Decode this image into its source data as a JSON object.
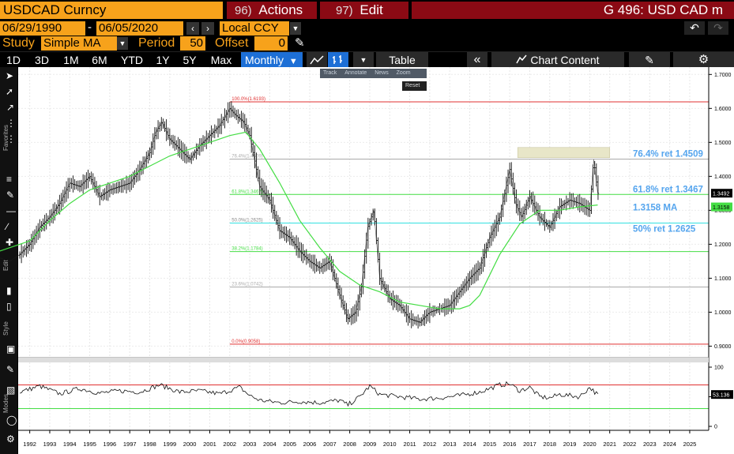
{
  "header": {
    "ticker": "USDCAD Curncy",
    "actions_num": "96)",
    "actions_label": "Actions",
    "edit_num": "97)",
    "edit_label": "Edit",
    "window_title": "G 496: USD CAD m"
  },
  "dates": {
    "start": "06/29/1990",
    "separator": "-",
    "end": "06/05/2020",
    "currency": "Local CCY"
  },
  "study": {
    "study_label": "Study",
    "study_value": "Simple MA",
    "period_label": "Period",
    "period_value": "50",
    "offset_label": "Offset",
    "offset_value": "0"
  },
  "toolbar": {
    "ranges": [
      "1D",
      "3D",
      "1M",
      "6M",
      "YTD",
      "1Y",
      "5Y",
      "Max"
    ],
    "frequency": "Monthly",
    "table_label": "Table",
    "chart_content_label": "Chart Content"
  },
  "annotation_bar": {
    "items": [
      "Track",
      "Annotate",
      "News",
      "Zoom"
    ],
    "reset": "Reset"
  },
  "side_labels": {
    "favorites": "Favorites",
    "edit": "Edit",
    "style": "Style",
    "modes": "Modes"
  },
  "colors": {
    "accent_orange": "#f7a21b",
    "button_red": "#8b0a14",
    "active_blue": "#1d6fd6",
    "ma_green": "#44dd44",
    "fib_red": "#e03030",
    "fib_cyan": "#33e0e0",
    "label_blue": "#55a5ee"
  },
  "chart_data": {
    "type": "ohlc-line",
    "x_ticks": [
      "1992",
      "1993",
      "1994",
      "1995",
      "1996",
      "1997",
      "1998",
      "1999",
      "2000",
      "2001",
      "2002",
      "2003",
      "2004",
      "2005",
      "2006",
      "2007",
      "2008",
      "2009",
      "2010",
      "2011",
      "2012",
      "2013",
      "2014",
      "2015",
      "2016",
      "2017",
      "2018",
      "2019",
      "2020",
      "2021",
      "2022",
      "2023",
      "2024",
      "2025"
    ],
    "y_ticks": [
      "1.7000",
      "1.6000",
      "1.5000",
      "1.4000",
      "1.3000",
      "1.2000",
      "1.1000",
      "1.0000",
      "0.9000"
    ],
    "ylim": [
      0.88,
      1.71
    ],
    "last_price": "1.3492",
    "ma_value": "1.3158",
    "price_series": {
      "name": "USDCAD",
      "x": [
        1990.5,
        1991.0,
        1991.5,
        1992.0,
        1992.5,
        1993.0,
        1993.5,
        1994.0,
        1994.5,
        1995.0,
        1995.5,
        1996.0,
        1996.5,
        1997.0,
        1997.5,
        1998.0,
        1998.3,
        1998.6,
        1999.0,
        1999.5,
        2000.0,
        2000.5,
        2001.0,
        2001.5,
        2002.0,
        2002.3,
        2002.7,
        2003.0,
        2003.5,
        2004.0,
        2004.5,
        2005.0,
        2005.5,
        2006.0,
        2006.5,
        2007.0,
        2007.5,
        2007.9,
        2008.3,
        2008.6,
        2008.9,
        2009.2,
        2009.5,
        2010.0,
        2010.5,
        2011.0,
        2011.5,
        2012.0,
        2012.5,
        2013.0,
        2013.5,
        2014.0,
        2014.5,
        2015.0,
        2015.5,
        2016.0,
        2016.3,
        2016.6,
        2017.0,
        2017.5,
        2018.0,
        2018.5,
        2019.0,
        2019.5,
        2020.0,
        2020.2,
        2020.4
      ],
      "y": [
        1.16,
        1.15,
        1.17,
        1.2,
        1.25,
        1.28,
        1.32,
        1.38,
        1.37,
        1.4,
        1.34,
        1.36,
        1.37,
        1.38,
        1.42,
        1.47,
        1.53,
        1.56,
        1.51,
        1.48,
        1.45,
        1.49,
        1.52,
        1.55,
        1.6,
        1.58,
        1.56,
        1.52,
        1.37,
        1.33,
        1.24,
        1.22,
        1.18,
        1.15,
        1.13,
        1.15,
        1.05,
        0.98,
        1.0,
        1.08,
        1.25,
        1.3,
        1.1,
        1.04,
        1.02,
        0.98,
        0.97,
        1.0,
        1.01,
        1.02,
        1.06,
        1.1,
        1.13,
        1.22,
        1.28,
        1.42,
        1.32,
        1.28,
        1.34,
        1.28,
        1.25,
        1.31,
        1.33,
        1.32,
        1.3,
        1.45,
        1.35
      ]
    },
    "ma_series": {
      "name": "1.3158 MA",
      "x": [
        1990.5,
        1992.0,
        1993.0,
        1994.0,
        1995.0,
        1996.0,
        1997.0,
        1998.0,
        1999.0,
        2000.0,
        2001.0,
        2002.0,
        2002.8,
        2003.5,
        2004.5,
        2005.5,
        2006.5,
        2007.5,
        2008.5,
        2009.5,
        2010.5,
        2011.5,
        2012.5,
        2013.5,
        2014.0,
        2014.5,
        2015.5,
        2016.5,
        2017.5,
        2018.5,
        2019.5,
        2020.4
      ],
      "y": [
        1.18,
        1.21,
        1.27,
        1.32,
        1.36,
        1.38,
        1.4,
        1.43,
        1.46,
        1.48,
        1.5,
        1.52,
        1.53,
        1.48,
        1.38,
        1.27,
        1.19,
        1.12,
        1.08,
        1.06,
        1.03,
        1.02,
        1.01,
        1.01,
        1.02,
        1.05,
        1.17,
        1.26,
        1.3,
        1.3,
        1.31,
        1.3158
      ]
    },
    "fib_levels": [
      {
        "label": "100.0%(1.6193)",
        "value": 1.6193,
        "color": "red"
      },
      {
        "label": "76.4%(1.4509)",
        "value": 1.4509,
        "color": "grey"
      },
      {
        "label": "61.8%(1.3467)",
        "value": 1.3467,
        "color": "green"
      },
      {
        "label": "50.0%(1.2625)",
        "value": 1.2625,
        "color": "cyan"
      },
      {
        "label": "38.2%(1.1784)",
        "value": 1.1784,
        "color": "green"
      },
      {
        "label": "23.6%(1.0742)",
        "value": 1.0742,
        "color": "grey"
      },
      {
        "label": "0.0%(0.9058)",
        "value": 0.9058,
        "color": "red"
      }
    ],
    "annotations": [
      {
        "text": "76.4% ret 1.4509",
        "value": 1.4509
      },
      {
        "text": "61.8% ret 1.3467",
        "value": 1.3467
      },
      {
        "text": "1.3158 MA",
        "value": 1.3158
      },
      {
        "text": "50% ret 1.2625",
        "value": 1.2625
      }
    ],
    "rsi": {
      "y_ticks": [
        "100",
        "50",
        "0"
      ],
      "ylim": [
        0,
        100
      ],
      "upper": 70,
      "lower": 30,
      "last": "53.136",
      "x": [
        1990.5,
        1991.5,
        1992.5,
        1993.5,
        1994.5,
        1995.5,
        1996.5,
        1997.5,
        1998.5,
        1999.5,
        2000.5,
        2001.5,
        2002.5,
        2003.0,
        2003.5,
        2004.5,
        2005.5,
        2006.5,
        2007.5,
        2007.9,
        2008.5,
        2009.0,
        2009.5,
        2010.5,
        2011.5,
        2012.5,
        2013.5,
        2014.5,
        2015.5,
        2016.0,
        2016.5,
        2017.0,
        2017.5,
        2018.0,
        2018.5,
        2019.0,
        2019.5,
        2020.0,
        2020.4
      ],
      "y": [
        62,
        58,
        68,
        55,
        64,
        56,
        60,
        58,
        70,
        58,
        60,
        55,
        66,
        52,
        44,
        40,
        42,
        40,
        44,
        36,
        50,
        68,
        54,
        50,
        46,
        48,
        52,
        58,
        70,
        72,
        60,
        66,
        50,
        48,
        54,
        52,
        50,
        66,
        53.136
      ]
    }
  }
}
